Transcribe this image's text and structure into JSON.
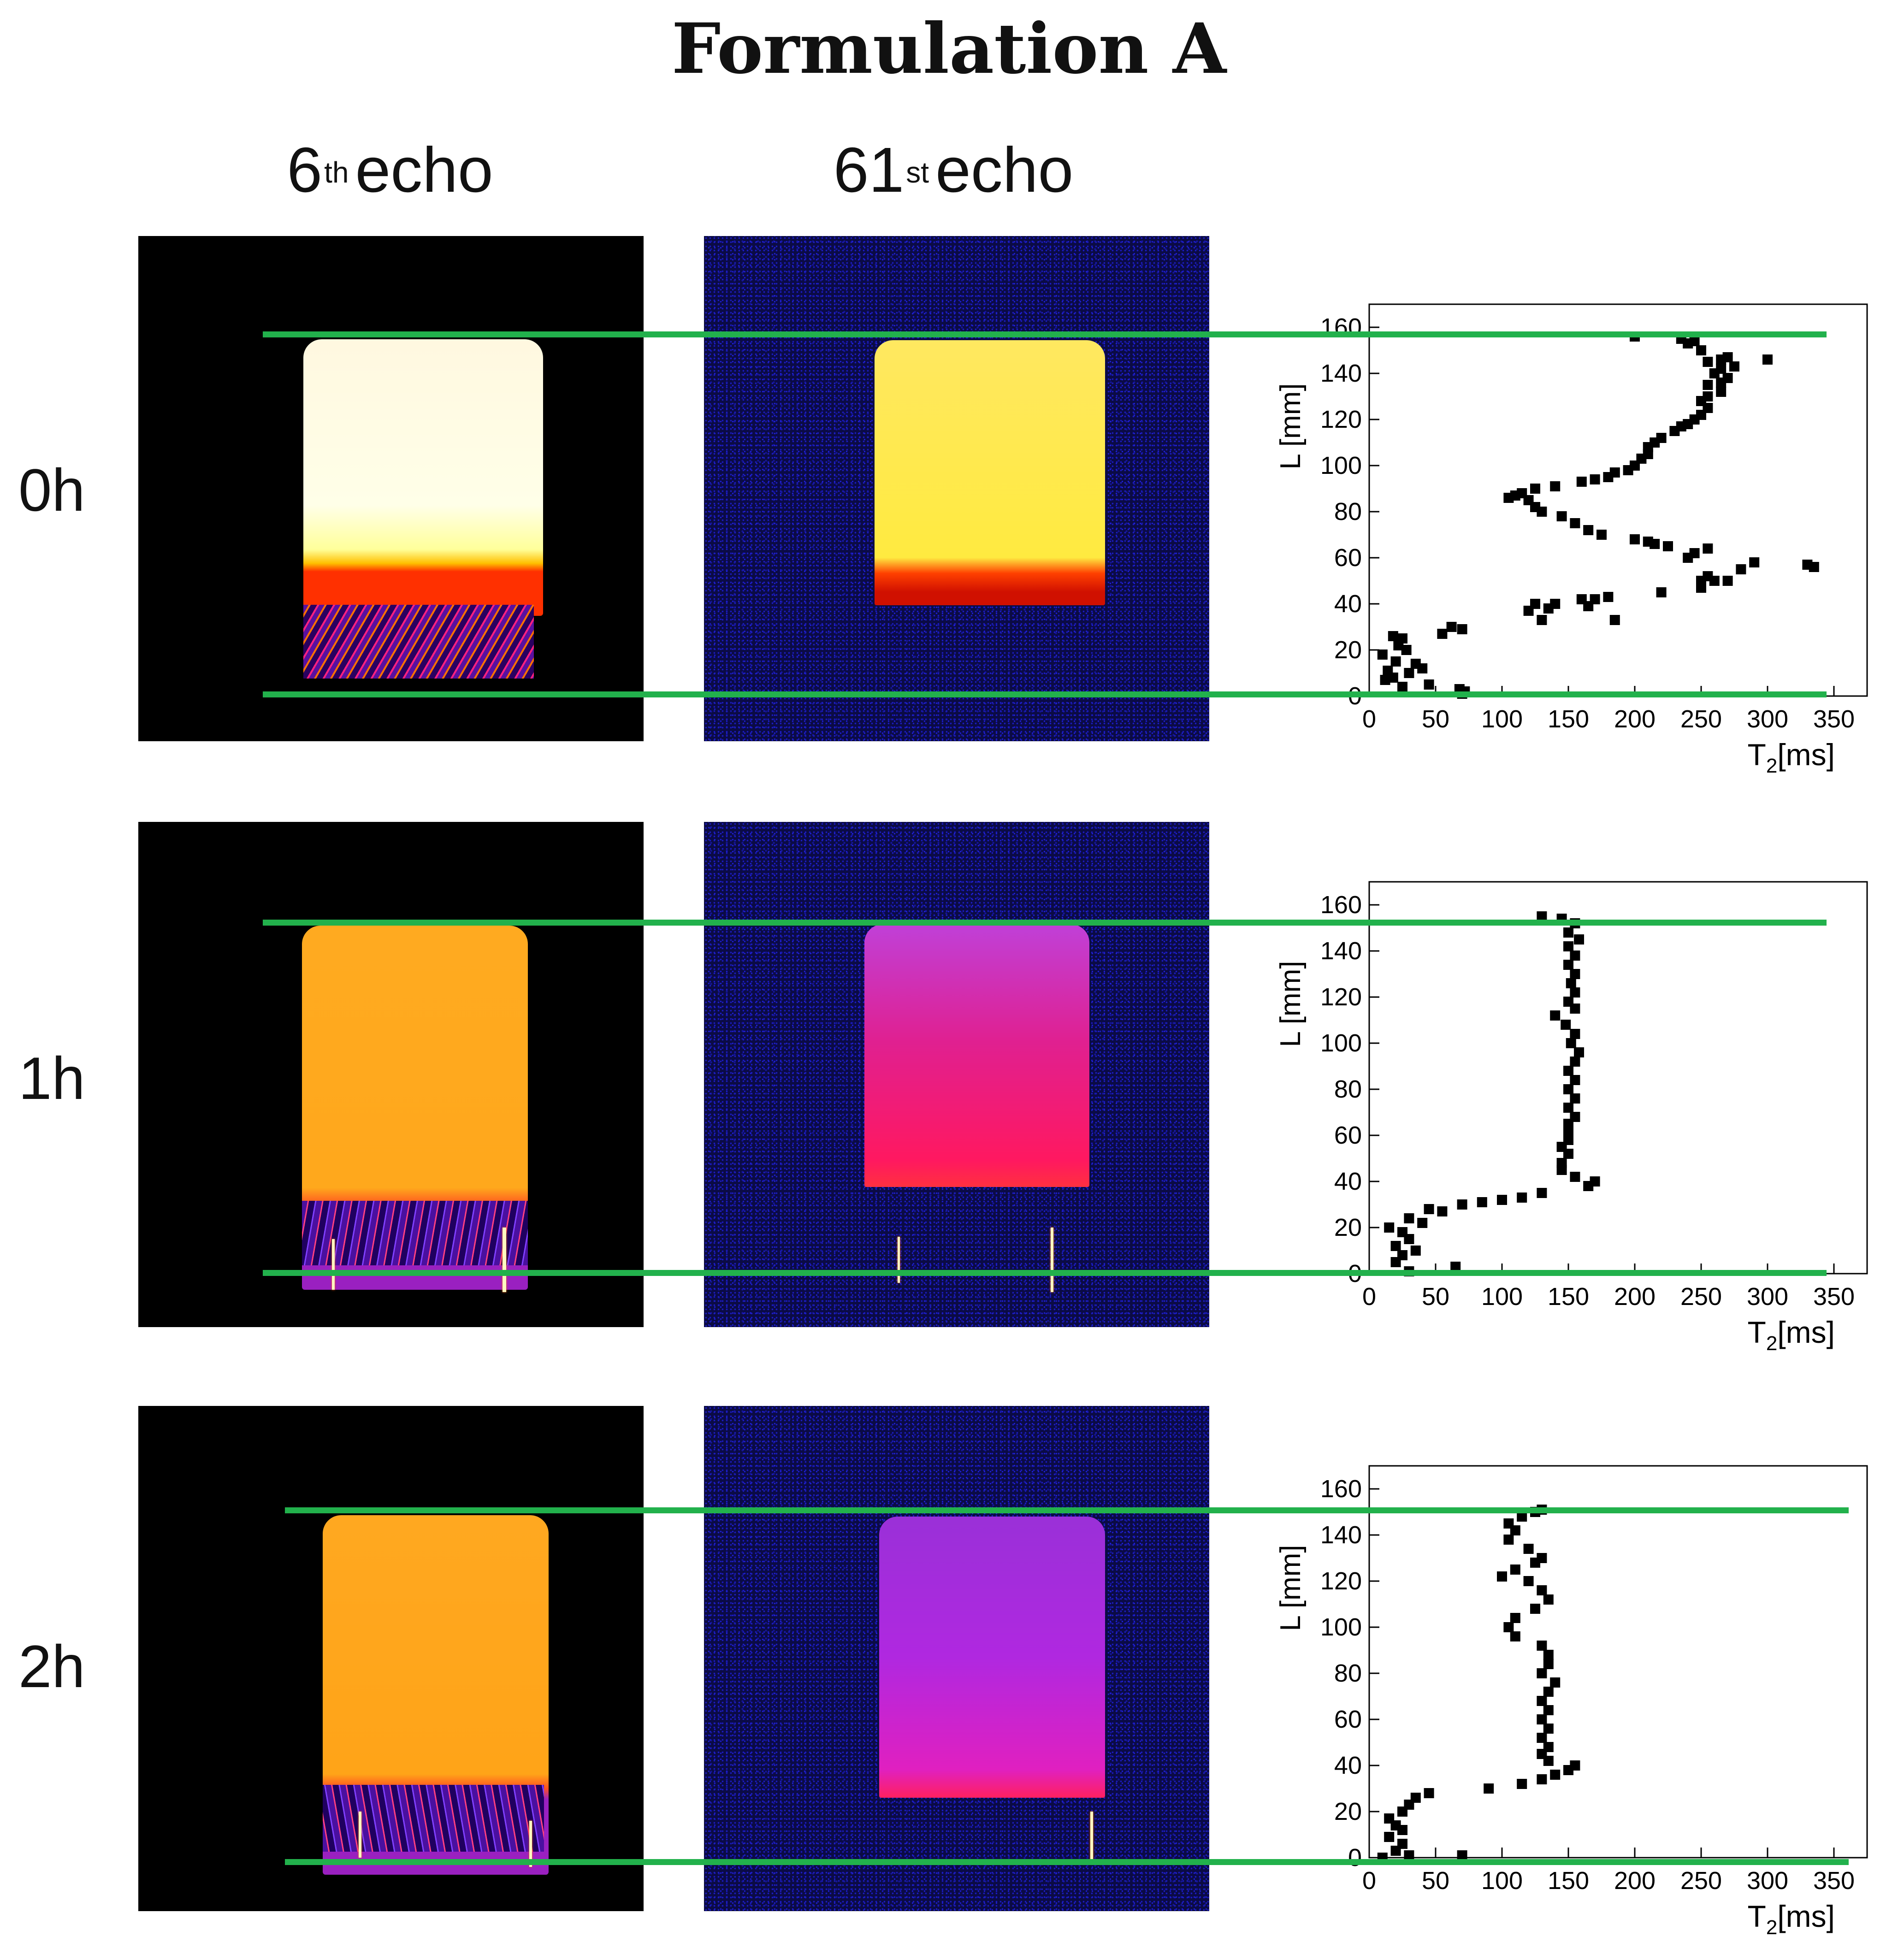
{
  "title": "Formulation A",
  "columns": [
    {
      "base": "6",
      "sup": "th",
      "word": "echo"
    },
    {
      "base": "61",
      "sup": "st",
      "word": "echo"
    }
  ],
  "rows": [
    "0h",
    "1h",
    "2h"
  ],
  "colors": {
    "guide_line": "#22b14c",
    "marker": "#000000",
    "image_background_6th": "#000000",
    "image_background_61st": "#0b0b45"
  },
  "chart_data": [
    {
      "type": "scatter",
      "panel": "0h",
      "xlabel_base": "T",
      "xlabel_sub": "2",
      "xlabel_unit": "[ms]",
      "ylabel": "L [mm]",
      "xlim": [
        0,
        375
      ],
      "ylim": [
        0,
        170
      ],
      "xticks": [
        0,
        50,
        100,
        150,
        200,
        250,
        300,
        350
      ],
      "yticks": [
        0,
        20,
        40,
        60,
        80,
        100,
        120,
        140,
        160
      ],
      "guide_lines_L": [
        159,
        1
      ],
      "series": [
        {
          "marker": "square",
          "points": [
            [
              70,
              1
            ],
            [
              68,
              3
            ],
            [
              72,
              2
            ],
            [
              12,
              7
            ],
            [
              18,
              8
            ],
            [
              25,
              4
            ],
            [
              45,
              5
            ],
            [
              30,
              10
            ],
            [
              40,
              12
            ],
            [
              20,
              15
            ],
            [
              10,
              18
            ],
            [
              28,
              20
            ],
            [
              22,
              22
            ],
            [
              25,
              25
            ],
            [
              18,
              26
            ],
            [
              55,
              27
            ],
            [
              62,
              30
            ],
            [
              70,
              29
            ],
            [
              35,
              14
            ],
            [
              14,
              11
            ],
            [
              130,
              33
            ],
            [
              185,
              33
            ],
            [
              120,
              37
            ],
            [
              135,
              38
            ],
            [
              140,
              40
            ],
            [
              165,
              39
            ],
            [
              180,
              43
            ],
            [
              170,
              42
            ],
            [
              160,
              42
            ],
            [
              125,
              40
            ],
            [
              220,
              45
            ],
            [
              250,
              47
            ],
            [
              250,
              50
            ],
            [
              260,
              50
            ],
            [
              270,
              50
            ],
            [
              255,
              52
            ],
            [
              280,
              55
            ],
            [
              290,
              58
            ],
            [
              330,
              57
            ],
            [
              335,
              56
            ],
            [
              240,
              60
            ],
            [
              245,
              62
            ],
            [
              255,
              64
            ],
            [
              225,
              65
            ],
            [
              215,
              66
            ],
            [
              210,
              67
            ],
            [
              200,
              68
            ],
            [
              175,
              70
            ],
            [
              165,
              72
            ],
            [
              155,
              75
            ],
            [
              145,
              78
            ],
            [
              130,
              80
            ],
            [
              125,
              82
            ],
            [
              120,
              85
            ],
            [
              110,
              87
            ],
            [
              105,
              86
            ],
            [
              115,
              88
            ],
            [
              125,
              90
            ],
            [
              140,
              91
            ],
            [
              160,
              93
            ],
            [
              170,
              94
            ],
            [
              180,
              95
            ],
            [
              185,
              97
            ],
            [
              195,
              98
            ],
            [
              200,
              100
            ],
            [
              205,
              103
            ],
            [
              210,
              105
            ],
            [
              210,
              108
            ],
            [
              215,
              110
            ],
            [
              220,
              112
            ],
            [
              230,
              115
            ],
            [
              235,
              117
            ],
            [
              240,
              118
            ],
            [
              245,
              120
            ],
            [
              250,
              122
            ],
            [
              255,
              125
            ],
            [
              250,
              128
            ],
            [
              255,
              130
            ],
            [
              265,
              132
            ],
            [
              255,
              135
            ],
            [
              265,
              136
            ],
            [
              270,
              138
            ],
            [
              260,
              140
            ],
            [
              265,
              142
            ],
            [
              275,
              143
            ],
            [
              255,
              145
            ],
            [
              265,
              146
            ],
            [
              270,
              147
            ],
            [
              300,
              146
            ],
            [
              250,
              150
            ],
            [
              240,
              153
            ],
            [
              235,
              155
            ],
            [
              245,
              154
            ],
            [
              200,
              156
            ]
          ]
        }
      ]
    },
    {
      "type": "scatter",
      "panel": "1h",
      "xlabel_base": "T",
      "xlabel_sub": "2",
      "xlabel_unit": "[ms]",
      "ylabel": "L [mm]",
      "xlim": [
        0,
        375
      ],
      "ylim": [
        0,
        170
      ],
      "xticks": [
        0,
        50,
        100,
        150,
        200,
        250,
        300,
        350
      ],
      "yticks": [
        0,
        20,
        40,
        60,
        80,
        100,
        120,
        140,
        160
      ],
      "guide_lines_L": [
        154,
        1
      ],
      "series": [
        {
          "marker": "square",
          "points": [
            [
              30,
              1
            ],
            [
              65,
              3
            ],
            [
              20,
              5
            ],
            [
              25,
              8
            ],
            [
              35,
              10
            ],
            [
              20,
              12
            ],
            [
              30,
              15
            ],
            [
              25,
              18
            ],
            [
              15,
              20
            ],
            [
              40,
              22
            ],
            [
              30,
              24
            ],
            [
              55,
              27
            ],
            [
              45,
              28
            ],
            [
              70,
              30
            ],
            [
              85,
              31
            ],
            [
              100,
              32
            ],
            [
              115,
              33
            ],
            [
              130,
              35
            ],
            [
              165,
              38
            ],
            [
              170,
              40
            ],
            [
              155,
              42
            ],
            [
              145,
              45
            ],
            [
              145,
              48
            ],
            [
              150,
              52
            ],
            [
              145,
              55
            ],
            [
              150,
              58
            ],
            [
              150,
              62
            ],
            [
              150,
              65
            ],
            [
              155,
              68
            ],
            [
              150,
              72
            ],
            [
              155,
              76
            ],
            [
              150,
              80
            ],
            [
              155,
              84
            ],
            [
              150,
              88
            ],
            [
              155,
              92
            ],
            [
              158,
              96
            ],
            [
              152,
              100
            ],
            [
              155,
              104
            ],
            [
              148,
              108
            ],
            [
              140,
              112
            ],
            [
              155,
              115
            ],
            [
              150,
              118
            ],
            [
              155,
              122
            ],
            [
              152,
              126
            ],
            [
              155,
              130
            ],
            [
              150,
              134
            ],
            [
              155,
              138
            ],
            [
              150,
              142
            ],
            [
              158,
              145
            ],
            [
              150,
              148
            ],
            [
              155,
              152
            ],
            [
              145,
              154
            ],
            [
              130,
              155
            ]
          ]
        }
      ]
    },
    {
      "type": "scatter",
      "panel": "2h",
      "xlabel_base": "T",
      "xlabel_sub": "2",
      "xlabel_unit": "[ms]",
      "ylabel": "L [mm]",
      "xlim": [
        0,
        375
      ],
      "ylim": [
        0,
        170
      ],
      "xticks": [
        0,
        50,
        100,
        150,
        200,
        250,
        300,
        350
      ],
      "yticks": [
        0,
        20,
        40,
        60,
        80,
        100,
        120,
        140,
        160
      ],
      "guide_lines_L": [
        152,
        0
      ],
      "series": [
        {
          "marker": "square",
          "points": [
            [
              10,
              0
            ],
            [
              30,
              1
            ],
            [
              70,
              1
            ],
            [
              20,
              3
            ],
            [
              25,
              6
            ],
            [
              15,
              9
            ],
            [
              25,
              12
            ],
            [
              20,
              14
            ],
            [
              15,
              17
            ],
            [
              25,
              20
            ],
            [
              30,
              23
            ],
            [
              35,
              26
            ],
            [
              45,
              28
            ],
            [
              90,
              30
            ],
            [
              115,
              32
            ],
            [
              130,
              34
            ],
            [
              140,
              36
            ],
            [
              150,
              38
            ],
            [
              155,
              40
            ],
            [
              135,
              42
            ],
            [
              130,
              45
            ],
            [
              135,
              48
            ],
            [
              130,
              52
            ],
            [
              135,
              56
            ],
            [
              130,
              60
            ],
            [
              135,
              64
            ],
            [
              130,
              68
            ],
            [
              135,
              72
            ],
            [
              140,
              76
            ],
            [
              130,
              80
            ],
            [
              135,
              84
            ],
            [
              135,
              88
            ],
            [
              130,
              92
            ],
            [
              110,
              96
            ],
            [
              105,
              100
            ],
            [
              110,
              104
            ],
            [
              125,
              108
            ],
            [
              135,
              112
            ],
            [
              130,
              116
            ],
            [
              120,
              120
            ],
            [
              100,
              122
            ],
            [
              110,
              125
            ],
            [
              125,
              128
            ],
            [
              130,
              130
            ],
            [
              120,
              134
            ],
            [
              105,
              138
            ],
            [
              110,
              142
            ],
            [
              105,
              145
            ],
            [
              115,
              148
            ],
            [
              125,
              150
            ],
            [
              130,
              151
            ]
          ]
        }
      ]
    }
  ]
}
